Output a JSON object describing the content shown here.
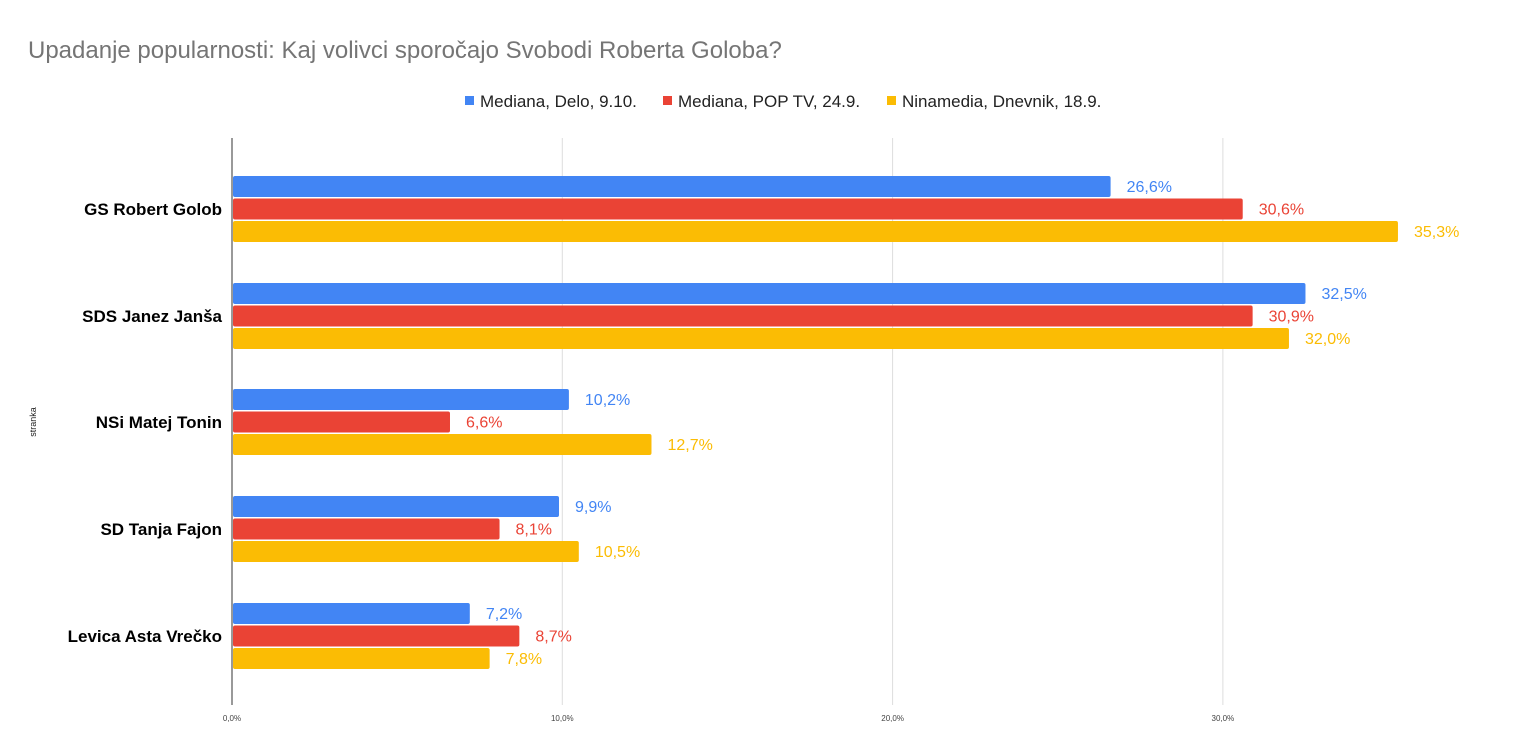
{
  "chart_data": {
    "type": "bar",
    "orientation": "horizontal",
    "title": "Upadanje popularnosti: Kaj volivci sporočajo Svobodi Roberta Goloba?",
    "xlabel": "",
    "ylabel": "stranka",
    "xlim": [
      0,
      40
    ],
    "x_ticks": [
      0,
      10,
      20,
      30
    ],
    "x_tick_labels": [
      "0,0%",
      "10,0%",
      "20,0%",
      "30,0%"
    ],
    "grid": true,
    "legend_position": "top",
    "categories": [
      "GS Robert Golob",
      "SDS Janez Janša",
      "NSi Matej Tonin",
      "SD Tanja Fajon",
      "Levica  Asta Vrečko"
    ],
    "series": [
      {
        "name": "Mediana, Delo, 9.10.",
        "color": "#4285f4",
        "values": [
          26.6,
          32.5,
          10.2,
          9.9,
          7.2
        ],
        "labels": [
          "26,6%",
          "32,5%",
          "10,2%",
          "9,9%",
          "7,2%"
        ]
      },
      {
        "name": "Mediana, POP TV, 24.9.",
        "color": "#ea4335",
        "values": [
          30.6,
          30.9,
          6.6,
          8.1,
          8.7
        ],
        "labels": [
          "30,6%",
          "30,9%",
          "6,6%",
          "8,1%",
          "8,7%"
        ]
      },
      {
        "name": "Ninamedia, Dnevnik, 18.9.",
        "color": "#fbbc04",
        "values": [
          35.3,
          32.0,
          12.7,
          10.5,
          7.8
        ],
        "labels": [
          "35,3%",
          "32,0%",
          "12,7%",
          "10,5%",
          "7,8%"
        ]
      }
    ]
  }
}
